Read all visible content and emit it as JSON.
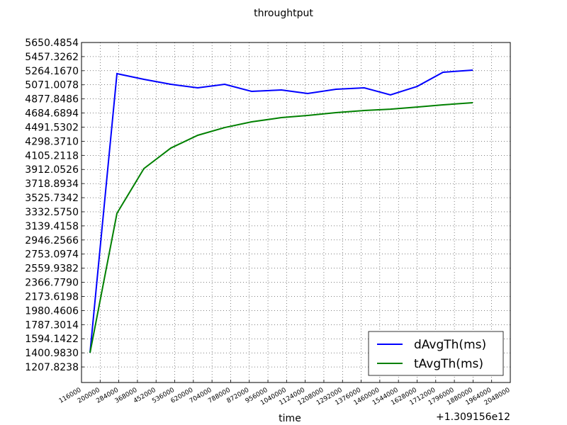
{
  "chart_data": {
    "type": "line",
    "title": "throughtput",
    "x_label": "time",
    "x_offset_text": "+1.309156e12",
    "x": [
      154300,
      275700,
      397100,
      518400,
      639800,
      761200,
      882500,
      1016700,
      1134900,
      1262700,
      1390000,
      1508000,
      1628000,
      1745000,
      1879000
    ],
    "series": [
      {
        "name": "dAvgTh(ms)",
        "color": "#0000ff",
        "values": [
          1400.983,
          5223.7,
          5146,
          5078,
          5030,
          5078,
          4981,
          5001,
          4952,
          5010,
          5030,
          4933,
          5049,
          5243,
          5272
        ]
      },
      {
        "name": "tAvgTh(ms)",
        "color": "#008000",
        "values": [
          1400.983,
          3312,
          3924,
          4205,
          4380,
          4486,
          4564,
          4622,
          4651,
          4690,
          4719,
          4738,
          4767,
          4797,
          4826
        ]
      }
    ],
    "xlim": [
      116000,
      2048000
    ],
    "xticks": [
      116000,
      200000,
      284000,
      368000,
      452000,
      536000,
      620000,
      704000,
      788000,
      872000,
      956000,
      1040000,
      1124000,
      1208000,
      1292000,
      1376000,
      1460000,
      1544000,
      1628000,
      1712000,
      1796000,
      1880000,
      1964000,
      2048000
    ],
    "ylim": [
      995,
      5650.4854
    ],
    "yticks": [
      5650.4854,
      5457.3262,
      {
        "value": 5264.167,
        "label": "5264.1670"
      },
      5071.0078,
      4877.8486,
      4684.6894,
      4491.5302,
      {
        "value": 4298.371,
        "label": "4298.3710"
      },
      4105.2118,
      3912.0526,
      3718.8934,
      3525.7342,
      {
        "value": 3332.575,
        "label": "3332.5750"
      },
      3139.4158,
      2946.2566,
      2753.0974,
      2559.9382,
      {
        "value": 2366.779,
        "label": "2366.7790"
      },
      2173.6198,
      1980.4606,
      1787.3014,
      1594.1422,
      {
        "value": 1400.983,
        "label": "1400.9830"
      },
      1207.8238
    ],
    "grid": true,
    "legend": "lower right"
  }
}
